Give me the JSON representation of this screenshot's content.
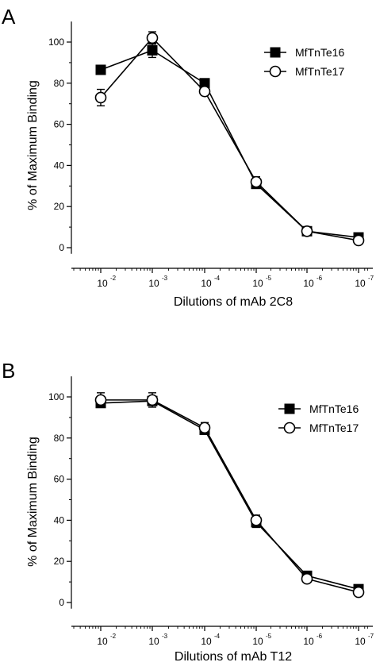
{
  "chart_data": [
    {
      "panel_label": "A",
      "type": "line",
      "xlabel": "Dilutions of mAb 2C8",
      "ylabel": "% of Maximum Binding",
      "x": [
        "10^-2",
        "10^-3",
        "10^-4",
        "10^-5",
        "10^-6",
        "10^-7"
      ],
      "x_tick_labels": [
        {
          "base": "10",
          "exp": "-2"
        },
        {
          "base": "10",
          "exp": "-3"
        },
        {
          "base": "10",
          "exp": "-4"
        },
        {
          "base": "10",
          "exp": "-5"
        },
        {
          "base": "10",
          "exp": "-6"
        },
        {
          "base": "10",
          "exp": "-7"
        }
      ],
      "x_log_values": [
        0.01,
        0.001,
        0.0001,
        1e-05,
        1e-06,
        1e-07
      ],
      "x_scale": "log-reversed",
      "y_ticks": [
        0,
        20,
        40,
        60,
        80,
        100
      ],
      "ylim": [
        -3,
        110
      ],
      "grid": false,
      "legend_position": "top-right",
      "series": [
        {
          "name": "MfTnTe16",
          "marker": "filled-square",
          "values": [
            86.5,
            96,
            80,
            31,
            8,
            5
          ],
          "errors": [
            1.5,
            3.5,
            1.5,
            2,
            1,
            1
          ]
        },
        {
          "name": "MfTnTe17",
          "marker": "open-circle",
          "values": [
            73,
            102,
            76,
            32,
            8,
            3.5
          ],
          "errors": [
            4,
            3,
            2,
            2.5,
            1.2,
            1.2
          ]
        }
      ]
    },
    {
      "panel_label": "B",
      "type": "line",
      "xlabel": "Dilutions of mAb T12",
      "ylabel": "% of Maximum Binding",
      "x": [
        "10^-2",
        "10^-3",
        "10^-4",
        "10^-5",
        "10^-6",
        "10^-7"
      ],
      "x_tick_labels": [
        {
          "base": "10",
          "exp": "-2"
        },
        {
          "base": "10",
          "exp": "-3"
        },
        {
          "base": "10",
          "exp": "-4"
        },
        {
          "base": "10",
          "exp": "-5"
        },
        {
          "base": "10",
          "exp": "-6"
        },
        {
          "base": "10",
          "exp": "-7"
        }
      ],
      "x_log_values": [
        0.01,
        0.001,
        0.0001,
        1e-05,
        1e-06,
        1e-07
      ],
      "x_scale": "log-reversed",
      "y_ticks": [
        0,
        20,
        40,
        60,
        80,
        100
      ],
      "ylim": [
        -3,
        110
      ],
      "grid": false,
      "legend_position": "right",
      "series": [
        {
          "name": "MfTnTe16",
          "marker": "filled-square",
          "values": [
            97,
            98,
            84,
            39,
            13,
            6.5
          ],
          "errors": [
            2,
            2,
            2,
            2.5,
            1.5,
            1
          ]
        },
        {
          "name": "MfTnTe17",
          "marker": "open-circle",
          "values": [
            98.5,
            98.5,
            85,
            40,
            11.5,
            5
          ],
          "errors": [
            3.5,
            3.5,
            2.5,
            2.5,
            1.5,
            1.5
          ]
        }
      ]
    }
  ]
}
